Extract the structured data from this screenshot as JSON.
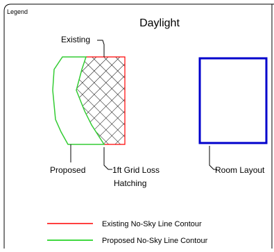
{
  "legend_tag": "Legend",
  "title": "Daylight",
  "callouts": {
    "existing": "Existing",
    "proposed": "Proposed",
    "grid_loss_line1": "1ft Grid Loss",
    "grid_loss_line2": "Hatching",
    "room_layout": "Room Layout"
  },
  "legend_items": [
    {
      "label": "Existing No-Sky Line Contour",
      "color": "#ff0000"
    },
    {
      "label": "Proposed No-Sky Line Contour",
      "color": "#00cc00"
    }
  ],
  "colors": {
    "existing_outline": "#ff0000",
    "proposed_outline": "#33cc33",
    "room_outline": "#0000cc",
    "hatch": "#000000"
  }
}
